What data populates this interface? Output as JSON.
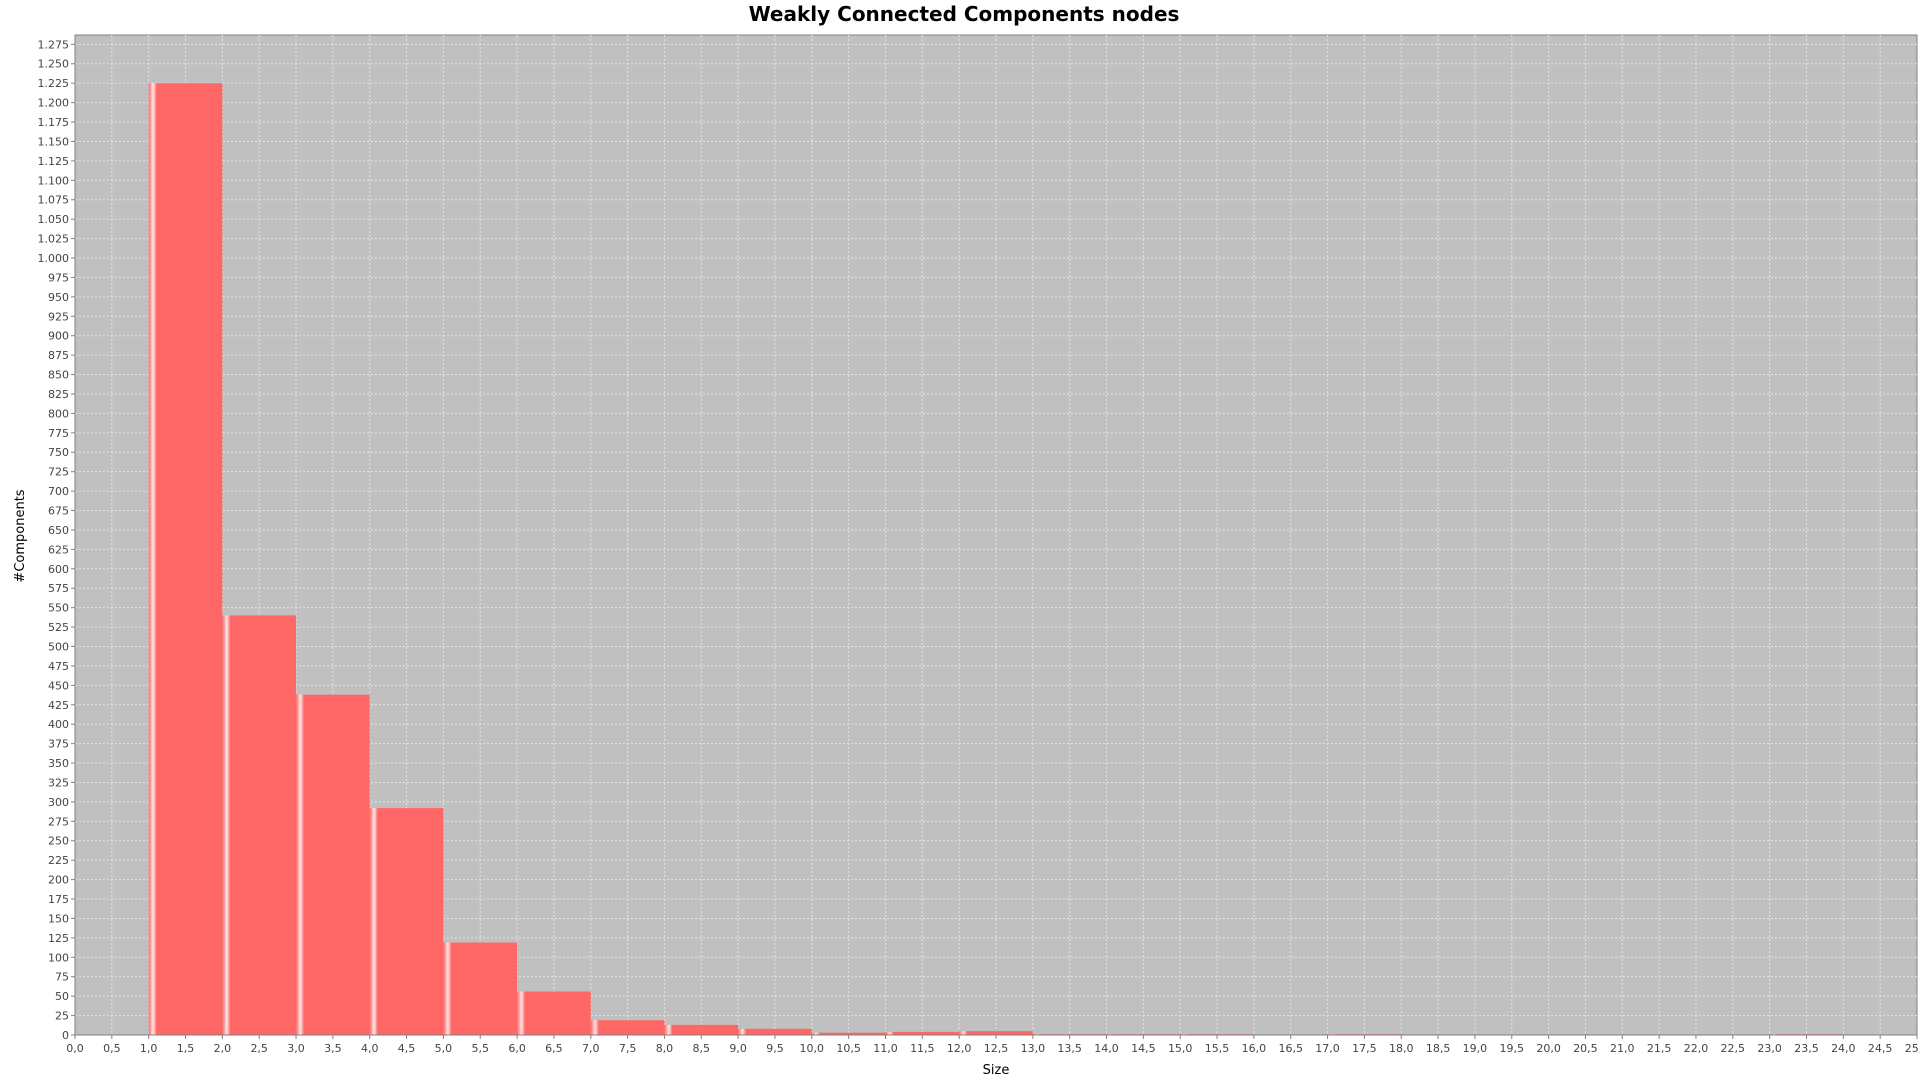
{
  "chart_data": {
    "type": "bar",
    "title": "Weakly Connected Components nodes",
    "xlabel": "Size",
    "ylabel": "#Components",
    "xlim": [
      0,
      25
    ],
    "ylim": [
      0,
      1287
    ],
    "x_tick_step": 0.5,
    "y_tick_step": 25,
    "grid": true,
    "decimal_separator": ",",
    "thousands_separator": ".",
    "colors": {
      "bar": "#ff6666",
      "bar_highlight": "#ffe6e6",
      "plot_background": "#c0c0c0",
      "gridline": "#e4e4e4"
    },
    "bars": [
      {
        "x_start": 1,
        "x_end": 2,
        "value": 1225
      },
      {
        "x_start": 2,
        "x_end": 3,
        "value": 540
      },
      {
        "x_start": 3,
        "x_end": 4,
        "value": 438
      },
      {
        "x_start": 4,
        "x_end": 5,
        "value": 292
      },
      {
        "x_start": 5,
        "x_end": 6,
        "value": 119
      },
      {
        "x_start": 6,
        "x_end": 7,
        "value": 56
      },
      {
        "x_start": 7,
        "x_end": 8,
        "value": 19
      },
      {
        "x_start": 8,
        "x_end": 9,
        "value": 13
      },
      {
        "x_start": 9,
        "x_end": 10,
        "value": 8
      },
      {
        "x_start": 10,
        "x_end": 11,
        "value": 3
      },
      {
        "x_start": 11,
        "x_end": 12,
        "value": 4
      },
      {
        "x_start": 12,
        "x_end": 13,
        "value": 5
      },
      {
        "x_start": 13,
        "x_end": 14,
        "value": 1
      },
      {
        "x_start": 14,
        "x_end": 15,
        "value": 1
      },
      {
        "x_start": 15,
        "x_end": 16,
        "value": 1
      },
      {
        "x_start": 16,
        "x_end": 17,
        "value": 0
      },
      {
        "x_start": 17,
        "x_end": 18,
        "value": 1
      },
      {
        "x_start": 18,
        "x_end": 19,
        "value": 0
      },
      {
        "x_start": 19,
        "x_end": 20,
        "value": 0
      },
      {
        "x_start": 20,
        "x_end": 21,
        "value": 0
      },
      {
        "x_start": 21,
        "x_end": 22,
        "value": 0
      },
      {
        "x_start": 22,
        "x_end": 23,
        "value": 0
      },
      {
        "x_start": 23,
        "x_end": 24,
        "value": 1
      },
      {
        "x_start": 24,
        "x_end": 25,
        "value": 0
      }
    ]
  }
}
